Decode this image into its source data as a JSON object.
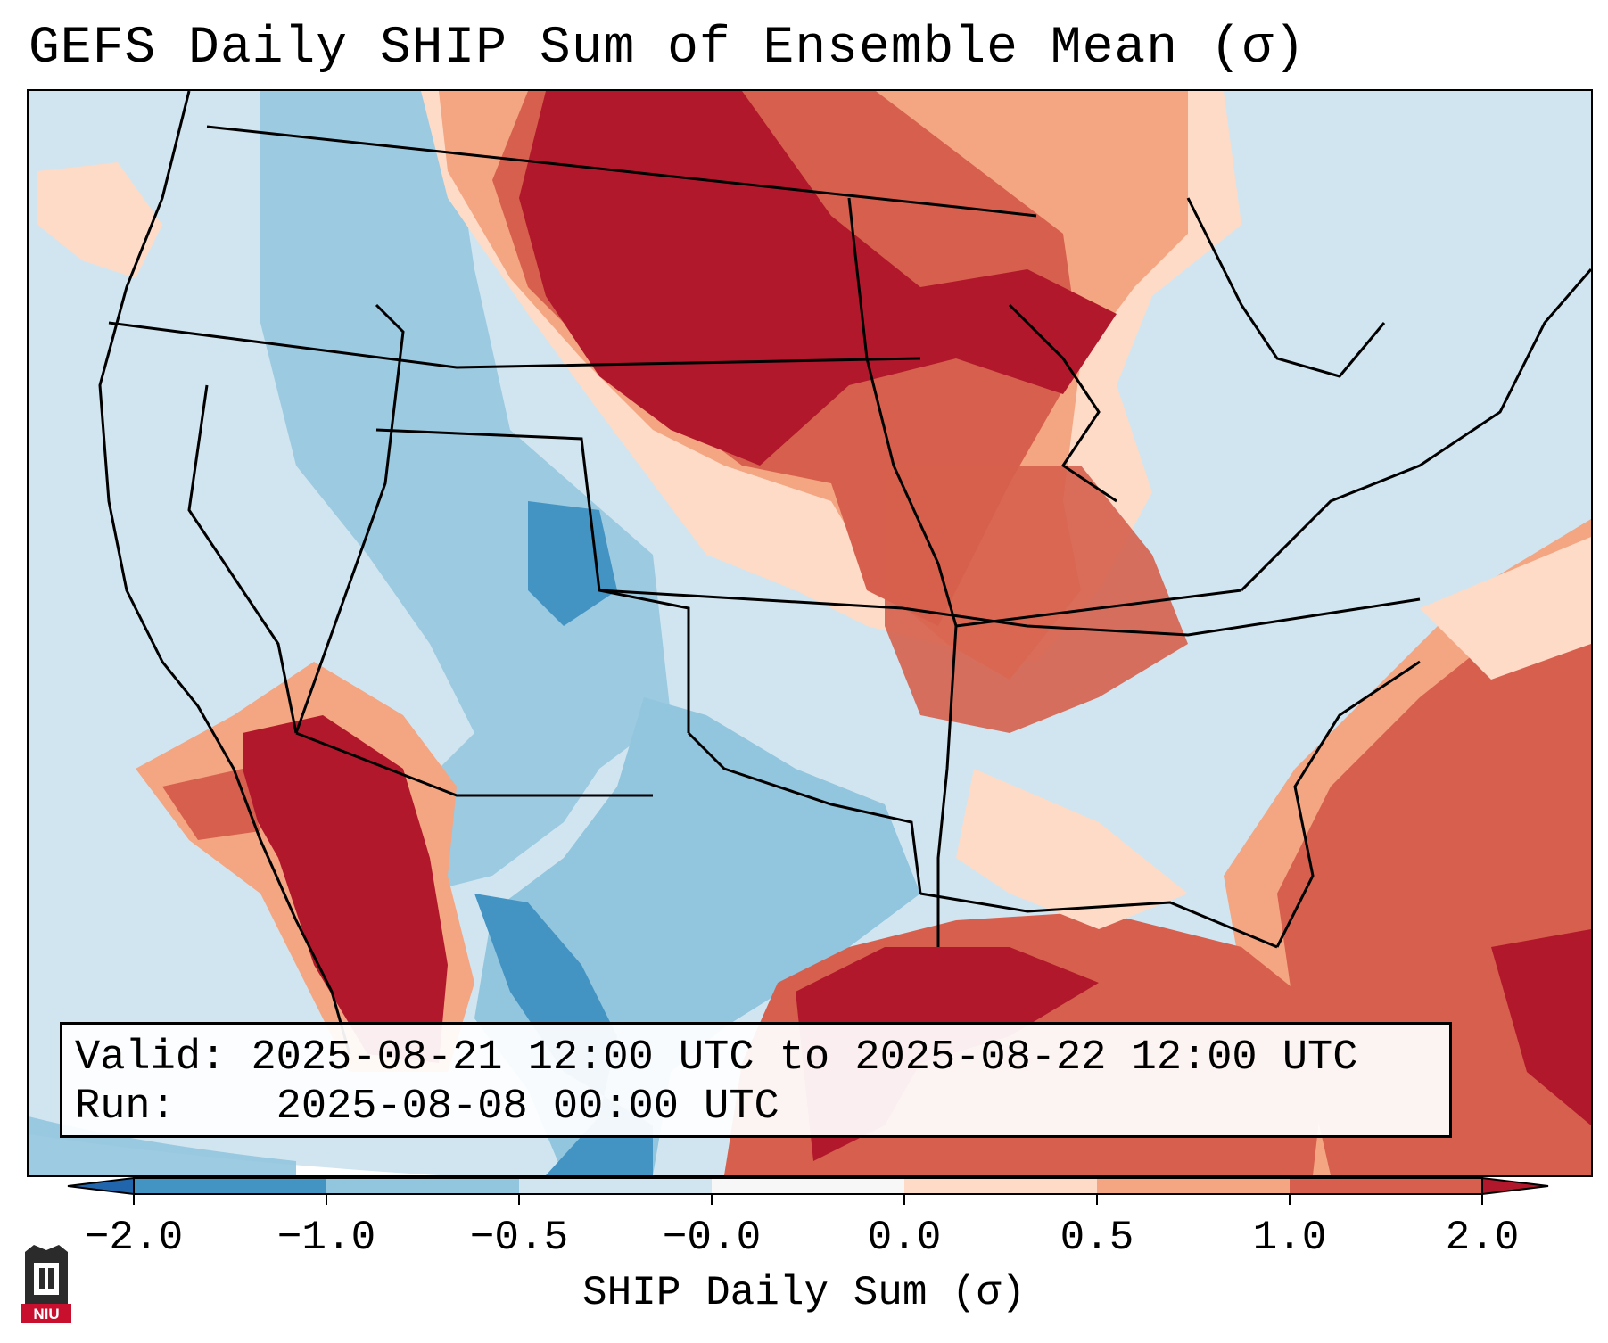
{
  "title": "GEFS Daily SHIP Sum of Ensemble Mean (σ)",
  "info": {
    "valid_label": "Valid:",
    "valid_value": "2025-08-21 12:00 UTC to 2025-08-22 12:00 UTC",
    "run_label": "Run:",
    "run_value": "2025-08-08 00:00 UTC"
  },
  "colorbar": {
    "label": "SHIP Daily Sum (σ)",
    "ticks": [
      "−2.0",
      "−1.0",
      "−0.5",
      "−0.0",
      "0.0",
      "0.5",
      "1.0",
      "2.0"
    ],
    "bins": [
      {
        "from": -2.0,
        "to": -1.0,
        "color": "#4393c3"
      },
      {
        "from": -1.0,
        "to": -0.5,
        "color": "#92c5de"
      },
      {
        "from": -0.5,
        "to": 0.0,
        "color": "#d1e5f0"
      },
      {
        "from": 0.0,
        "to": 0.0,
        "color": "#f7f7f7"
      },
      {
        "from": 0.0,
        "to": 0.5,
        "color": "#fddbc7"
      },
      {
        "from": 0.5,
        "to": 1.0,
        "color": "#f4a582"
      },
      {
        "from": 1.0,
        "to": 2.0,
        "color": "#d6604d"
      }
    ],
    "under_color": "#2166ac",
    "over_color": "#b2182b"
  },
  "logo": {
    "text": "NIU",
    "color": "#c8102e"
  }
}
